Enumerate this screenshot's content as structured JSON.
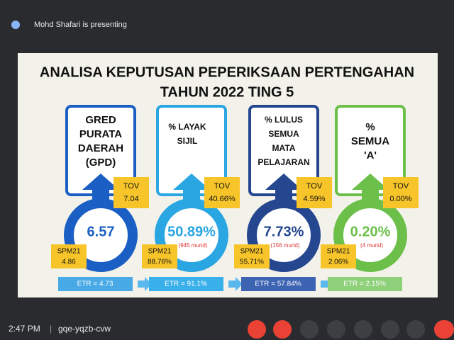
{
  "presenter": "Mohd Shafari is presenting",
  "slide": {
    "title_lines": [
      "ANALISA KEPUTUSAN PEPERIKSAAN PERTENGAHAN",
      "TAHUN 2022 TING 5"
    ],
    "columns": [
      {
        "label_lines": [
          "GRED",
          "PURATA",
          "DAERAH",
          "(GPD)"
        ],
        "tov_label": "TOV",
        "tov_value": "7.04",
        "value": "6.57",
        "spm_label": "SPM21",
        "spm_value": "4.86",
        "etr": "ETR = 4.73"
      },
      {
        "label_lines": [
          "% LAYAK",
          "SIJIL"
        ],
        "tov_label": "TOV",
        "tov_value": "40.66%",
        "value": "50.89%",
        "note": "(945 murid)",
        "spm_label": "SPM21",
        "spm_value": "88.76%",
        "etr": "ETR = 91.1%"
      },
      {
        "label_lines": [
          "% LULUS",
          "SEMUA",
          "MATA",
          "PELAJARAN"
        ],
        "tov_label": "TOV",
        "tov_value": "4.59%",
        "value": "7.73%",
        "note": "(156 murid)",
        "spm_label": "SPM21",
        "spm_value": "55.71%",
        "etr": "ETR = 57.84%"
      },
      {
        "label_lines": [
          "%",
          "SEMUA",
          "'A'"
        ],
        "tov_label": "TOV",
        "tov_value": "0.00%",
        "value": "0.20%",
        "note": "(4 murid)",
        "spm_label": "SPM21",
        "spm_value": "2.06%",
        "etr": "ETR = 2.15%"
      }
    ]
  },
  "footer": {
    "time": "2:47 PM",
    "meeting_code": "gqe-yqzb-cvw"
  }
}
